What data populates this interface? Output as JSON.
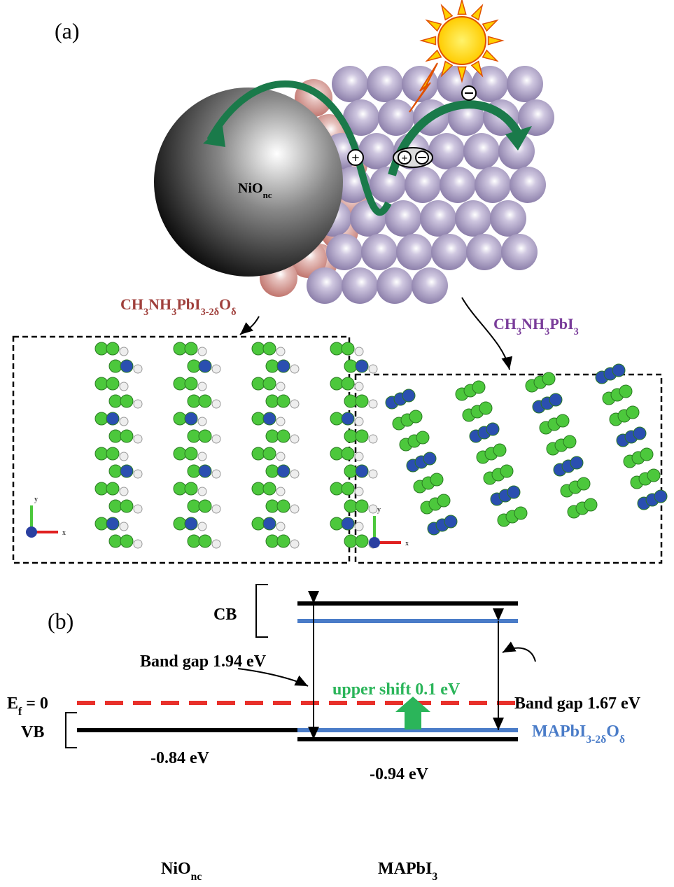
{
  "panel_a": {
    "label": "(a)",
    "particle_label": [
      "NiO",
      "nc"
    ],
    "left_phase": [
      "CH",
      "3",
      "NH",
      "3",
      "PbI",
      "3-2δ",
      "O",
      "δ"
    ],
    "right_phase": [
      "CH",
      "3",
      "NH",
      "3",
      "PbI",
      "3"
    ],
    "axes": [
      {
        "y": "y",
        "x": "x"
      },
      {
        "y": "y",
        "x": "x"
      }
    ]
  },
  "panel_b": {
    "label": "(b)",
    "cb": "CB",
    "vb": "VB",
    "fermi": [
      "E",
      "f",
      " = 0"
    ],
    "gap_left": "Band gap 1.94 eV",
    "gap_right": "Band gap 1.67 eV",
    "shift": "upper shift 0.1 eV",
    "doped_label": [
      "MAPbI",
      "3-2δ",
      "O",
      "δ"
    ],
    "nio_vb": "-0.84 eV",
    "mapi_vb": "-0.94 eV",
    "bottom_labels": [
      [
        "NiO",
        "nc"
      ],
      [
        "MAPbI",
        "3"
      ]
    ]
  }
}
